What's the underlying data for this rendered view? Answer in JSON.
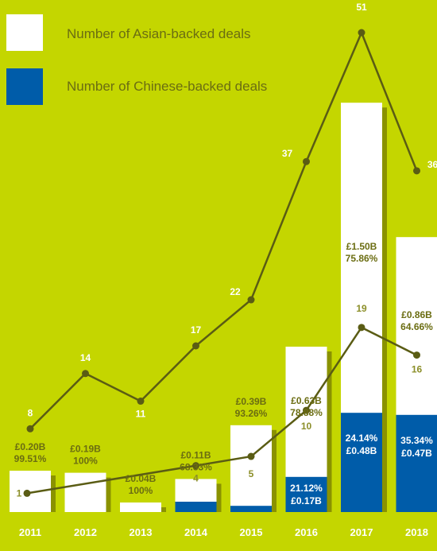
{
  "colors": {
    "background": "#c4d600",
    "asian_bar": "#ffffff",
    "chinese_bar": "#005ca9",
    "shadow": "#8a9200",
    "line": "#5a5c14",
    "dark_text": "#6b6d12"
  },
  "legend": [
    {
      "label": "Number of Asian-backed deals",
      "color": "#ffffff"
    },
    {
      "label": "Number of Chinese-backed deals",
      "color": "#005ca9"
    }
  ],
  "chart_data": {
    "type": "bar",
    "categories": [
      "2011",
      "2012",
      "2013",
      "2014",
      "2015",
      "2016",
      "2017",
      "2018"
    ],
    "series": [
      {
        "name": "Number of Asian-backed deals",
        "type": "line",
        "values": [
          8,
          14,
          11,
          17,
          22,
          37,
          51,
          36
        ],
        "labels": [
          "8",
          "14",
          "11",
          "17",
          "22",
          "37",
          "51",
          "36"
        ]
      },
      {
        "name": "Number of Chinese-backed deals",
        "type": "line",
        "values": [
          1,
          null,
          null,
          4,
          5,
          10,
          19,
          16
        ],
        "labels": [
          "1",
          "",
          "",
          "4",
          "5",
          "10",
          "19",
          "16"
        ]
      }
    ],
    "bars": {
      "total_value_gbp_b": [
        0.2,
        0.19,
        0.04,
        0.16,
        0.42,
        0.8,
        1.98,
        1.33
      ],
      "asian_share_labels": [
        [
          "£0.20B",
          "99.51%"
        ],
        [
          "£0.19B",
          "100%"
        ],
        [
          "£0.04B",
          "100%"
        ],
        [
          "£0.11B",
          "68.33%"
        ],
        [
          "£0.39B",
          "93.26%"
        ],
        [
          "£0.63B",
          "78.88%"
        ],
        [
          "£1.50B",
          "75.86%"
        ],
        [
          "£0.86B",
          "64.66%"
        ]
      ],
      "chinese_share_value_gbp_b": [
        0.0,
        0.0,
        0.0,
        0.05,
        0.03,
        0.17,
        0.48,
        0.47
      ],
      "chinese_share_labels": [
        [
          "",
          ""
        ],
        [
          "",
          ""
        ],
        [
          "",
          ""
        ],
        [
          "",
          ""
        ],
        [
          "",
          ""
        ],
        [
          "21.12%",
          "£0.17B"
        ],
        [
          "24.14%",
          "£0.48B"
        ],
        [
          "35.34%",
          "£0.47B"
        ]
      ]
    }
  }
}
